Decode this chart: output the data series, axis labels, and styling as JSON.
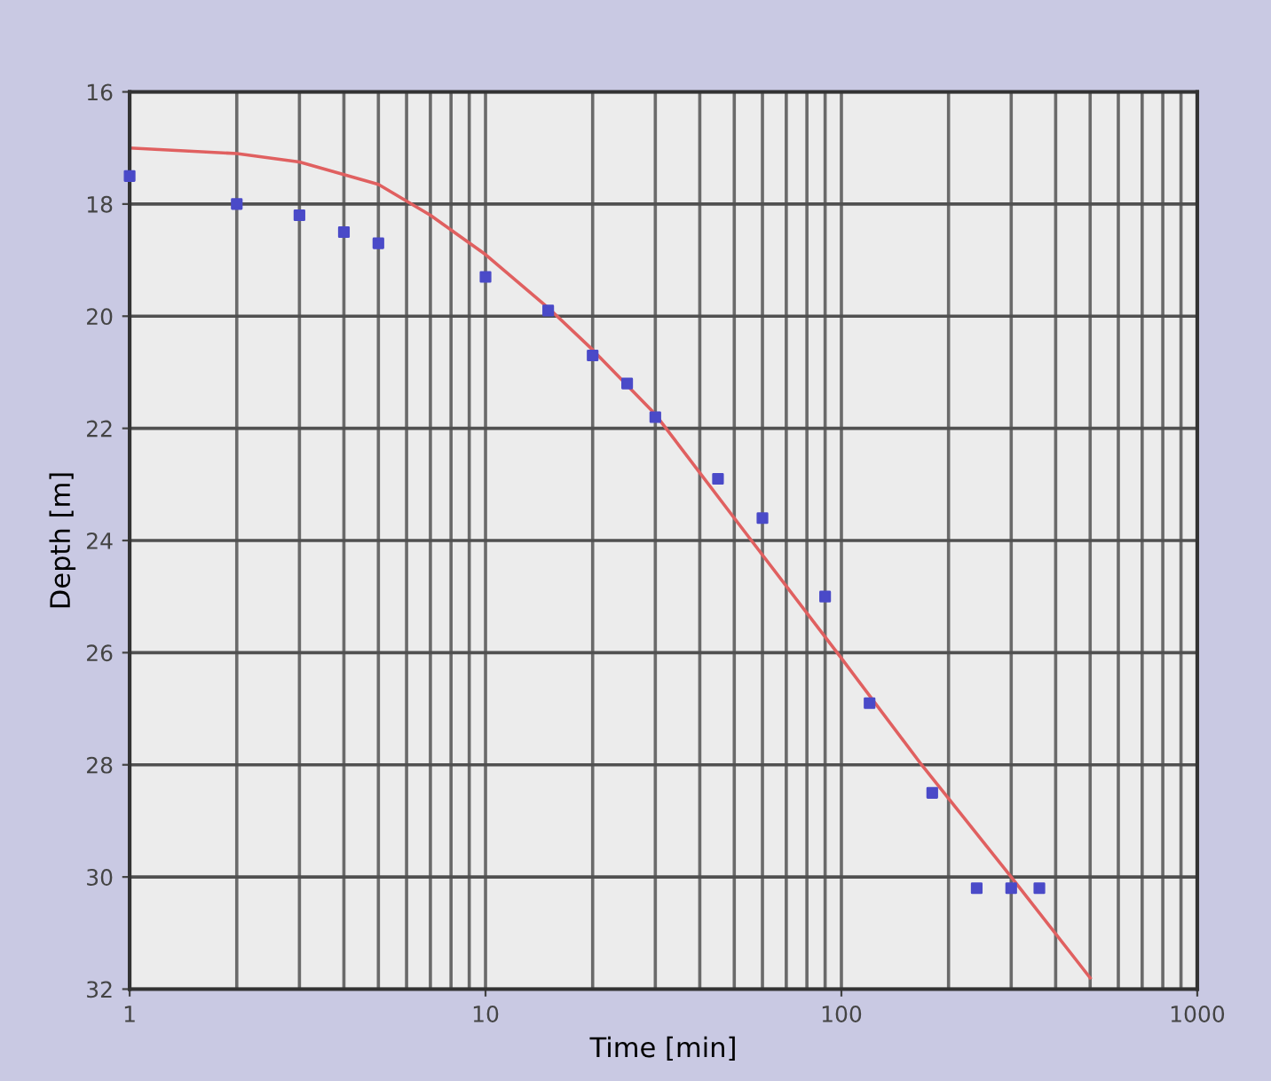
{
  "chart_data": {
    "type": "scatter",
    "xlabel": "Time [min]",
    "ylabel": "Depth [m]",
    "log": "x",
    "xlim": [
      1,
      1000
    ],
    "xticks": [
      1,
      10,
      100,
      1000
    ],
    "ylim": [
      32,
      16
    ],
    "yticks": [
      16,
      18,
      20,
      22,
      24,
      26,
      28,
      30,
      32
    ],
    "grid": true,
    "marker": "square",
    "series": [
      {
        "color": "#4a4ac8",
        "x": [
          1,
          2,
          3,
          4,
          5,
          10,
          15,
          20,
          25,
          30,
          45,
          60,
          90,
          120,
          180,
          240,
          300,
          360
        ],
        "values": [
          17.5,
          18.0,
          18.2,
          18.5,
          18.7,
          19.3,
          19.9,
          20.7,
          21.2,
          21.8,
          22.9,
          23.6,
          25.0,
          26.9,
          28.5,
          30.2,
          30.2,
          30.2
        ]
      },
      {
        "type": "line",
        "color": "#e06060",
        "marker": "none",
        "x": [
          1,
          2,
          3,
          5,
          7,
          10,
          15,
          20,
          30,
          50,
          100,
          168,
          200,
          300,
          500
        ],
        "values": [
          17.0,
          17.1,
          17.25,
          17.65,
          18.2,
          18.9,
          19.85,
          20.6,
          21.75,
          23.6,
          26.1,
          28.0,
          28.6,
          30.0,
          31.8
        ]
      }
    ]
  }
}
